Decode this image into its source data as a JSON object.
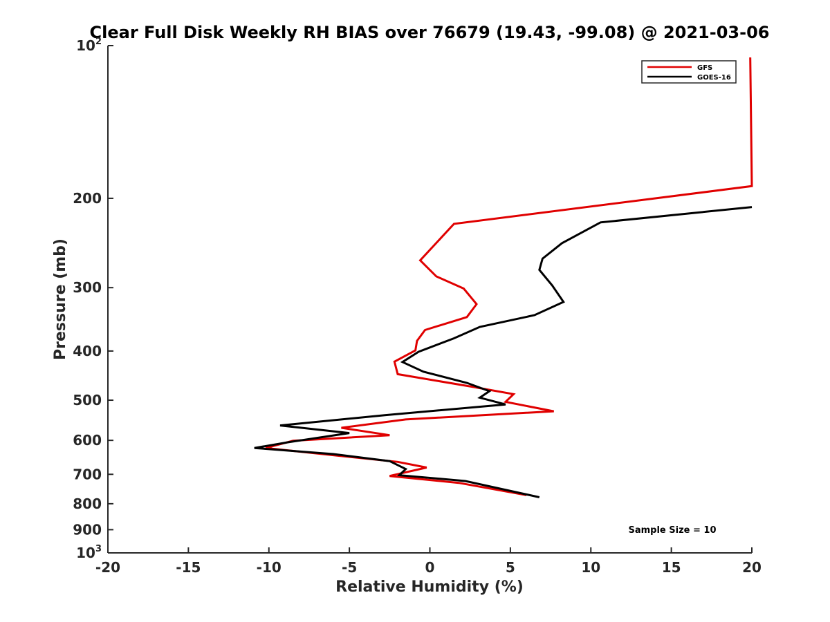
{
  "chart_data": {
    "type": "line",
    "title": "Clear Full Disk Weekly RH BIAS over 76679 (19.43, -99.08) @ 2021-03-06",
    "xlabel": "Relative Humidity (%)",
    "ylabel": "Pressure (mb)",
    "xlim": [
      -20,
      20
    ],
    "ylim": [
      100,
      1000
    ],
    "y_scale": "log",
    "y_reversed": true,
    "grid": false,
    "legend_position": "top-right",
    "x_ticks": [
      "-20",
      "-15",
      "-10",
      "-5",
      "0",
      "5",
      "10",
      "15",
      "20"
    ],
    "y_ticks": [
      {
        "value": 100,
        "base": "10",
        "exp": "2"
      },
      {
        "value": 200,
        "label": "200"
      },
      {
        "value": 300,
        "label": "300"
      },
      {
        "value": 400,
        "label": "400"
      },
      {
        "value": 500,
        "label": "500"
      },
      {
        "value": 600,
        "label": "600"
      },
      {
        "value": 700,
        "label": "700"
      },
      {
        "value": 800,
        "label": "800"
      },
      {
        "value": 900,
        "label": "900"
      },
      {
        "value": 1000,
        "base": "10",
        "exp": "3"
      }
    ],
    "series": [
      {
        "name": "GFS",
        "color": "#e00000",
        "points": [
          [
            19.9,
            105.5
          ],
          [
            20.0,
            189.2
          ],
          [
            1.5,
            224.6
          ],
          [
            -0.6,
            265.0
          ],
          [
            0.4,
            285.0
          ],
          [
            2.1,
            301.2
          ],
          [
            2.9,
            323.4
          ],
          [
            2.3,
            342.9
          ],
          [
            -0.3,
            363.6
          ],
          [
            -0.8,
            382.0
          ],
          [
            -0.9,
            398.8
          ],
          [
            -2.2,
            419.8
          ],
          [
            -2.0,
            444.3
          ],
          [
            2.6,
            470.2
          ],
          [
            5.2,
            486.5
          ],
          [
            4.7,
            503.9
          ],
          [
            7.7,
            525.9
          ],
          [
            -1.5,
            545.7
          ],
          [
            -5.5,
            566.8
          ],
          [
            -2.5,
            586.2
          ],
          [
            -8.5,
            601.2
          ],
          [
            -10.2,
            621.1
          ],
          [
            -5.8,
            642.7
          ],
          [
            -2.0,
            661.6
          ],
          [
            -0.2,
            678.9
          ],
          [
            -2.5,
            705.2
          ],
          [
            1.8,
            727.8
          ],
          [
            6.0,
            769.4
          ]
        ]
      },
      {
        "name": "GOES-16",
        "color": "#000000",
        "points": [
          [
            20.0,
            208.1
          ],
          [
            10.6,
            223.1
          ],
          [
            8.2,
            245.2
          ],
          [
            7.0,
            263.0
          ],
          [
            6.8,
            276.8
          ],
          [
            7.6,
            297.0
          ],
          [
            8.3,
            320.1
          ],
          [
            6.5,
            339.9
          ],
          [
            3.1,
            358.5
          ],
          [
            1.5,
            377.5
          ],
          [
            -0.7,
            401.4
          ],
          [
            -1.7,
            420.5
          ],
          [
            -0.4,
            439.3
          ],
          [
            2.3,
            462.2
          ],
          [
            3.7,
            480.0
          ],
          [
            3.1,
            494.3
          ],
          [
            4.7,
            509.8
          ],
          [
            -2.8,
            535.2
          ],
          [
            -9.3,
            560.7
          ],
          [
            -5.0,
            580.4
          ],
          [
            -8.8,
            605.1
          ],
          [
            -10.9,
            621.1
          ],
          [
            -6.0,
            638.5
          ],
          [
            -2.5,
            659.3
          ],
          [
            -1.5,
            683.5
          ],
          [
            -1.9,
            702.9
          ],
          [
            2.2,
            721.6
          ],
          [
            6.8,
            776.8
          ]
        ]
      }
    ],
    "annotations": [
      "Sample Size = 10"
    ]
  }
}
